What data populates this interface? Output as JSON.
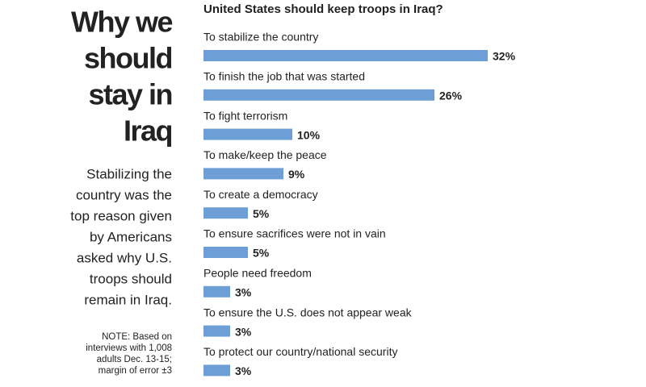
{
  "header": {
    "title_lines": [
      "Why we",
      "should",
      "stay in",
      "Iraq"
    ],
    "description_lines": [
      "Stabilizing the",
      "country was the",
      "top reason given",
      "by Americans",
      "asked why U.S.",
      "troops should",
      "remain in Iraq."
    ],
    "note_lines": [
      "NOTE: Based on",
      "interviews with 1,008",
      "adults Dec. 13-15;",
      "margin of error ±3"
    ]
  },
  "chart_data": {
    "type": "bar",
    "orientation": "horizontal",
    "title": "United States should keep troops in Iraq?",
    "categories": [
      "To stabilize the country",
      "To finish the job that was started",
      "To fight terrorism",
      "To make/keep the peace",
      "To create a democracy",
      "To ensure sacrifices were not in vain",
      "People need freedom",
      "To ensure the U.S. does not appear weak",
      "To protect our country/national security"
    ],
    "values": [
      32,
      26,
      10,
      9,
      5,
      5,
      3,
      3,
      3
    ],
    "value_labels": [
      "32%",
      "26%",
      "10%",
      "9%",
      "5%",
      "5%",
      "3%",
      "3%",
      "3%"
    ],
    "color": "#6d9fd6"
  }
}
